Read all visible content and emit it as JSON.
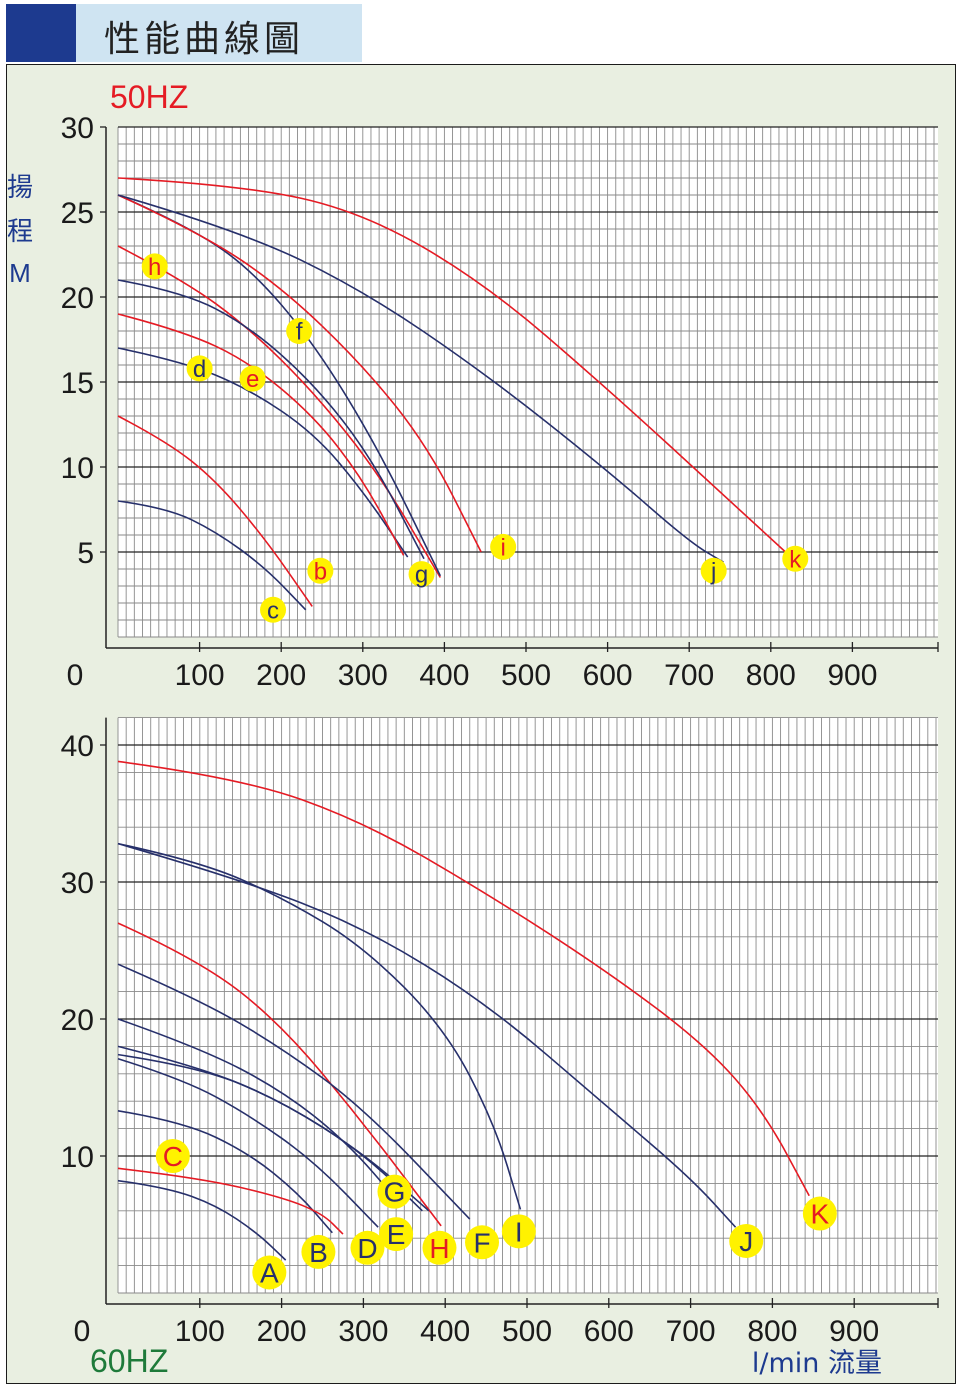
{
  "header": {
    "title": "性能曲線圖"
  },
  "top_chart": {
    "freq_label": "50HZ",
    "ylabel_lines": [
      "揚",
      "程",
      "M"
    ]
  },
  "bottom_chart": {
    "freq_label": "60HZ",
    "xlabel": "l/min 流量"
  },
  "colors": {
    "accent_blue": "#1d3a8f",
    "header_bg": "#cfe4f2",
    "panel_bg": "#e9efe1",
    "curve_red": "#e51b24",
    "curve_navy": "#27306b",
    "marker_yellow": "#fff200"
  },
  "chart_data": [
    {
      "type": "line",
      "title": "50HZ",
      "xlabel": "",
      "ylabel": "揚程 M",
      "xlim": [
        0,
        1000
      ],
      "ylim": [
        0,
        30
      ],
      "x_ticks": [
        100,
        200,
        300,
        400,
        500,
        600,
        700,
        800,
        900
      ],
      "y_ticks": [
        5,
        10,
        15,
        20,
        25,
        30
      ],
      "origin_label": "0",
      "grid": true,
      "series": [
        {
          "name": "c",
          "color": "navy",
          "label_color": "navy",
          "x": [
            0,
            60,
            120,
            180,
            230
          ],
          "y": [
            8,
            7.6,
            6.2,
            4.1,
            1.6
          ],
          "label_at": [
            190,
            1.6
          ]
        },
        {
          "name": "b",
          "color": "red",
          "label_color": "red",
          "x": [
            0,
            60,
            120,
            180,
            238
          ],
          "y": [
            13,
            11.5,
            9.2,
            5.8,
            1.8
          ],
          "label_at": [
            248,
            3.9
          ]
        },
        {
          "name": "d",
          "color": "navy",
          "label_color": "navy",
          "x": [
            0,
            80,
            160,
            240,
            300,
            355
          ],
          "y": [
            17,
            16.2,
            14.6,
            12,
            8.6,
            4.7
          ],
          "label_at": [
            100,
            15.8
          ]
        },
        {
          "name": "e",
          "color": "red",
          "label_color": "red",
          "x": [
            0,
            80,
            160,
            240,
            300,
            350
          ],
          "y": [
            19,
            18,
            16.2,
            13,
            9.3,
            4.8
          ],
          "label_at": [
            165,
            15.2
          ]
        },
        {
          "name": "h",
          "color": "red",
          "label_color": "red",
          "x": [
            0,
            80,
            160,
            240,
            320,
            395
          ],
          "y": [
            23,
            21,
            18.2,
            14.4,
            9.6,
            3.5
          ],
          "label_at": [
            45,
            21.8
          ]
        },
        {
          "name": "g",
          "color": "navy",
          "label_color": "navy",
          "x": [
            0,
            80,
            160,
            240,
            310,
            375
          ],
          "y": [
            21,
            20.3,
            18.3,
            14.9,
            10.6,
            4.6
          ],
          "label_at": [
            372,
            3.7
          ]
        },
        {
          "name": "f",
          "color": "navy",
          "label_color": "navy",
          "x": [
            0,
            80,
            160,
            240,
            320,
            395
          ],
          "y": [
            26,
            24.3,
            21.8,
            17.3,
            11,
            3.6
          ],
          "label_at": [
            222,
            18
          ]
        },
        {
          "name": "i",
          "color": "red",
          "label_color": "red",
          "x": [
            0,
            100,
            200,
            300,
            380,
            445
          ],
          "y": [
            26,
            23.8,
            20.6,
            16,
            11.2,
            5
          ],
          "label_at": [
            472,
            5.3
          ]
        },
        {
          "name": "j",
          "color": "navy",
          "label_color": "navy",
          "x": [
            0,
            150,
            300,
            450,
            600,
            700,
            742
          ],
          "y": [
            26,
            23.9,
            20.4,
            15.5,
            9.8,
            5.6,
            4.4
          ],
          "label_at": [
            730,
            3.9
          ]
        },
        {
          "name": "k",
          "color": "red",
          "label_color": "red",
          "x": [
            0,
            150,
            300,
            450,
            600,
            750,
            818
          ],
          "y": [
            27,
            26.6,
            25,
            20.8,
            14.6,
            8,
            5
          ],
          "label_at": [
            830,
            4.6
          ]
        }
      ]
    },
    {
      "type": "line",
      "title": "60HZ",
      "xlabel": "l/min 流量",
      "ylabel": "",
      "xlim": [
        0,
        1000
      ],
      "ylim": [
        0,
        42
      ],
      "x_ticks": [
        100,
        200,
        300,
        400,
        500,
        600,
        700,
        800,
        900
      ],
      "y_ticks": [
        10,
        20,
        30,
        40
      ],
      "origin_label": "0",
      "grid": true,
      "series": [
        {
          "name": "A",
          "color": "navy",
          "label_color": "navy",
          "x": [
            0,
            60,
            120,
            170,
            205
          ],
          "y": [
            8.2,
            7.7,
            6.4,
            4.4,
            2.4
          ],
          "label_at": [
            185,
            1.5
          ]
        },
        {
          "name": "B",
          "color": "navy",
          "label_color": "navy",
          "x": [
            0,
            80,
            160,
            220,
            262
          ],
          "y": [
            13.3,
            12.5,
            10.2,
            7.3,
            4.4
          ],
          "label_at": [
            245,
            3
          ]
        },
        {
          "name": "C",
          "color": "red",
          "label_color": "red",
          "x": [
            0,
            100,
            200,
            250,
            275
          ],
          "y": [
            9.1,
            8.4,
            7,
            5.8,
            4.3
          ],
          "label_at": [
            67,
            10
          ]
        },
        {
          "name": "D",
          "color": "navy",
          "label_color": "navy",
          "x": [
            0,
            80,
            160,
            240,
            318
          ],
          "y": [
            17.1,
            15.6,
            13,
            9.6,
            4.8
          ],
          "label_at": [
            305,
            3.3
          ]
        },
        {
          "name": "E",
          "color": "navy",
          "label_color": "navy",
          "x": [
            0,
            100,
            200,
            280,
            345
          ],
          "y": [
            20,
            17.9,
            14.8,
            11,
            6.5
          ],
          "label_at": [
            340,
            4.3
          ]
        },
        {
          "name": "G",
          "color": "navy",
          "label_color": "navy",
          "x": [
            0,
            100,
            200,
            300,
            372
          ],
          "y": [
            18,
            16.5,
            14,
            10.2,
            6
          ],
          "label_at": [
            338,
            7.4
          ]
        },
        {
          "name": "H",
          "color": "red",
          "label_color": "red",
          "x": [
            0,
            100,
            200,
            300,
            395
          ],
          "y": [
            27,
            24.3,
            19.6,
            12.4,
            4.9
          ],
          "label_at": [
            393,
            3.3
          ]
        },
        {
          "name": "F",
          "color": "navy",
          "label_color": "navy",
          "x": [
            0,
            100,
            200,
            300,
            430
          ],
          "y": [
            24,
            21.4,
            17.9,
            13.5,
            5.4
          ],
          "label_at": [
            445,
            3.7
          ]
        },
        {
          "name": "I",
          "color": "navy",
          "label_color": "navy",
          "x": [
            0,
            100,
            200,
            300,
            400,
            460,
            492
          ],
          "y": [
            32.8,
            31.5,
            28.9,
            25.3,
            19.3,
            12.4,
            6.1
          ],
          "label_at": [
            490,
            4.5
          ]
        },
        {
          "name": "J",
          "color": "navy",
          "label_color": "navy",
          "x": [
            0,
            150,
            300,
            450,
            600,
            700,
            755
          ],
          "y": [
            32.8,
            30.2,
            26.7,
            21.2,
            13.5,
            8.4,
            4.8
          ],
          "label_at": [
            768,
            3.8
          ]
        },
        {
          "name": "K",
          "color": "red",
          "label_color": "red",
          "x": [
            0,
            150,
            300,
            450,
            600,
            720,
            790,
            845
          ],
          "y": [
            38.8,
            37.6,
            34.4,
            29.2,
            23.4,
            18,
            13.2,
            7.1
          ],
          "label_at": [
            858,
            5.8
          ]
        }
      ],
      "extra_line": {
        "name": "navy-17.4",
        "color": "navy",
        "x": [
          0,
          100,
          200,
          300,
          380
        ],
        "y": [
          17.4,
          16.5,
          14,
          10.2,
          6
        ]
      }
    }
  ]
}
